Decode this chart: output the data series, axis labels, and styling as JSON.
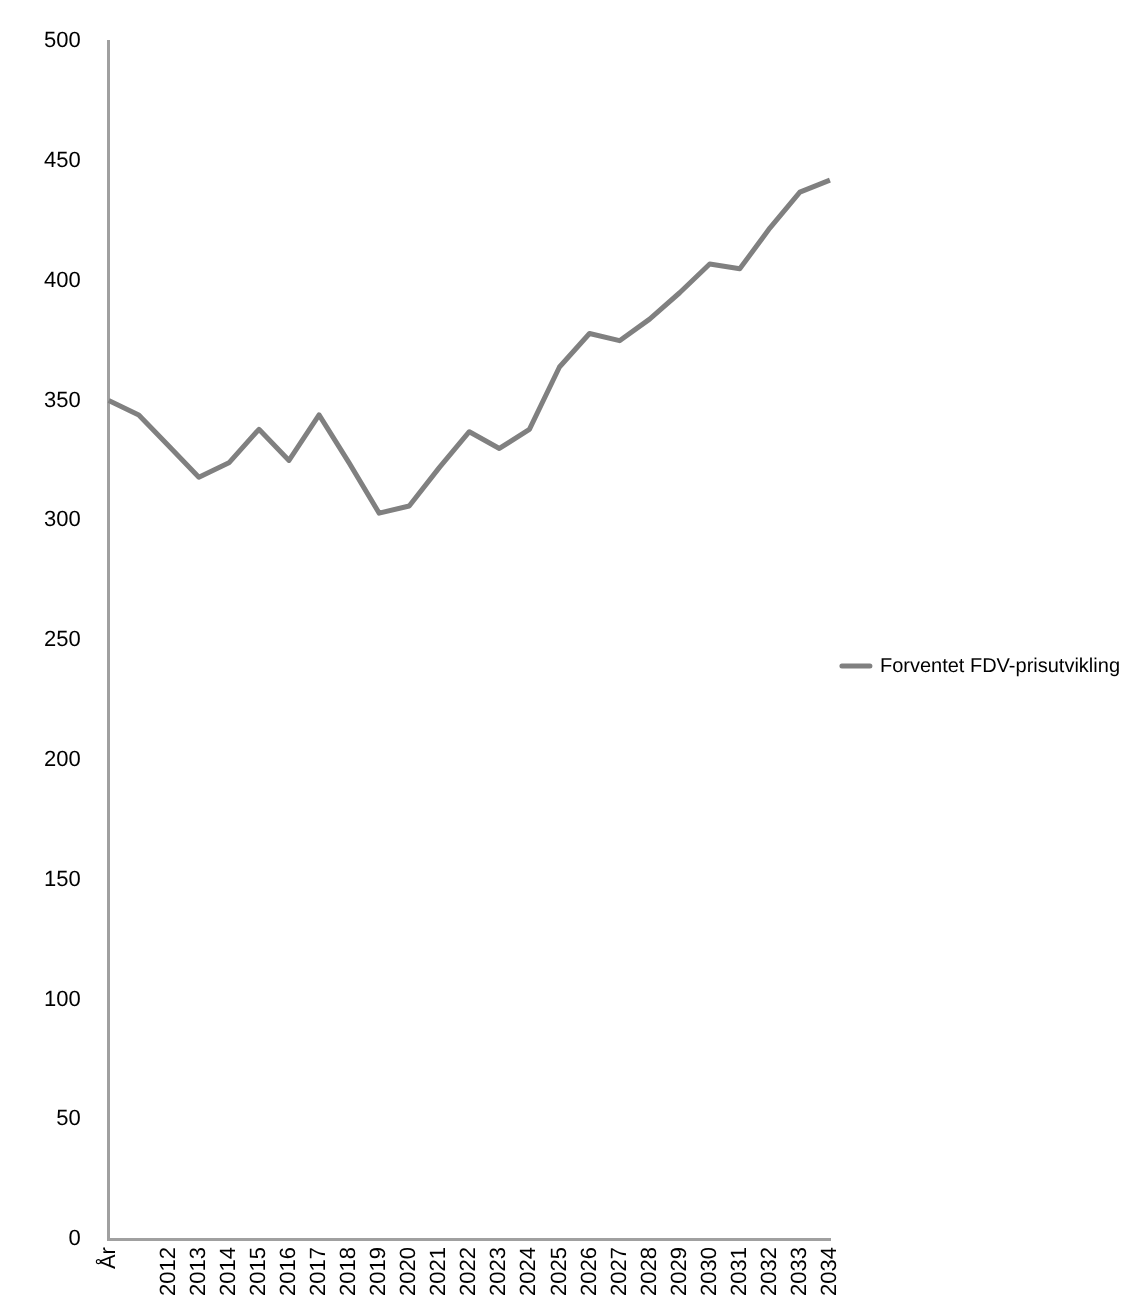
{
  "chart_data": {
    "type": "line",
    "categories": [
      "År",
      null,
      "2012",
      "2013",
      "2014",
      "2015",
      "2016",
      "2017",
      "2018",
      "2019",
      "2020",
      "2021",
      "2022",
      "2023",
      "2024",
      "2025",
      "2026",
      "2027",
      "2028",
      "2029",
      "2030",
      "2031",
      "2032",
      "2033",
      "2034"
    ],
    "series": [
      {
        "name": "Forventet FDV-prisutvikling",
        "color": "#808080",
        "values": [
          350,
          344,
          331,
          318,
          324,
          338,
          325,
          344,
          324,
          303,
          306,
          322,
          337,
          330,
          338,
          364,
          378,
          375,
          384,
          395,
          407,
          405,
          422,
          437,
          442
        ]
      }
    ],
    "ylim": [
      0,
      500
    ],
    "yticks": [
      0,
      50,
      100,
      150,
      200,
      250,
      300,
      350,
      400,
      450,
      500
    ],
    "grid": false,
    "legend": "right",
    "marker": "none",
    "line_style": "solid"
  }
}
